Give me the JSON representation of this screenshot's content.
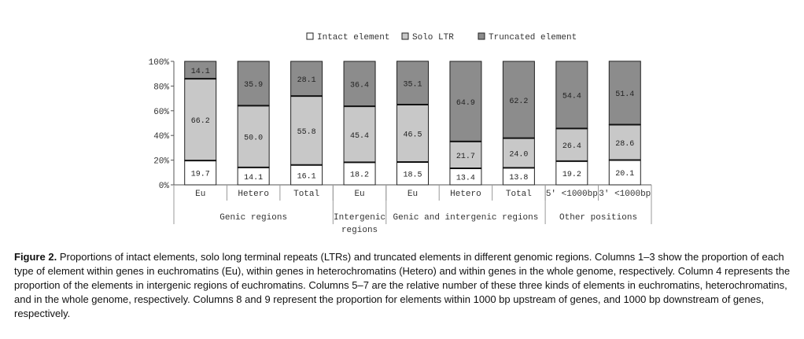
{
  "chart_data": {
    "type": "bar",
    "stacked": true,
    "percent_stacked": true,
    "categories": [
      "Eu",
      "Hetero",
      "Total",
      "Eu",
      "Eu",
      "Hetero",
      "Total",
      "5' <1000bp",
      "3' <1000bp"
    ],
    "series": [
      {
        "name": "Intact element",
        "color": "#ffffff",
        "values": [
          19.7,
          14.1,
          16.1,
          18.2,
          18.5,
          13.4,
          13.8,
          19.2,
          20.1
        ]
      },
      {
        "name": "Solo LTR",
        "color": "#c8c8c8",
        "values": [
          66.2,
          50.0,
          55.8,
          45.4,
          46.5,
          21.7,
          24.0,
          26.4,
          28.6
        ]
      },
      {
        "name": "Truncated element",
        "color": "#8c8c8c",
        "values": [
          14.1,
          35.9,
          28.1,
          36.4,
          35.1,
          64.9,
          62.2,
          54.4,
          51.4
        ]
      }
    ],
    "value_labels": [
      [
        "19.7",
        "14.1",
        "16.1",
        "18.2",
        "18.5",
        "13.4",
        "13.8",
        "19.2",
        "20.1"
      ],
      [
        "66.2",
        "50.0",
        "55.8",
        "45.4",
        "46.5",
        "21.7",
        "24.0",
        "26.4",
        "28.6"
      ],
      [
        "14.1",
        "35.9",
        "28.1",
        "36.4",
        "35.1",
        "64.9",
        "62.2",
        "54.4",
        "51.4"
      ]
    ],
    "y_ticks": [
      "0%",
      "20%",
      "40%",
      "60%",
      "80%",
      "100%"
    ],
    "ylim": [
      0,
      100
    ],
    "groups": [
      {
        "label": "Genic regions",
        "span": [
          0,
          2
        ]
      },
      {
        "label": "Intergenic regions",
        "span": [
          3,
          3
        ]
      },
      {
        "label": "Genic and intergenic regions",
        "span": [
          4,
          6
        ]
      },
      {
        "label": "Other positions",
        "span": [
          7,
          8
        ]
      }
    ],
    "legend_position": "top",
    "grid": false
  },
  "caption": {
    "label": "Figure 2.",
    "text": "Proportions of intact elements, solo long terminal repeats (LTRs) and truncated elements in different genomic regions. Columns 1–3 show the proportion of each type of element within genes in euchromatins (Eu), within genes in heterochromatins (Hetero) and within genes in the whole genome, respectively. Column 4 represents the proportion of the elements in intergenic regions of euchromatins. Columns 5–7 are the relative number of these three kinds of elements in euchromatins, heterochromatins, and in the whole genome, respectively. Columns 8 and 9 represent the proportion for elements within 1000 bp upstream of genes, and 1000 bp downstream of genes, respectively."
  }
}
